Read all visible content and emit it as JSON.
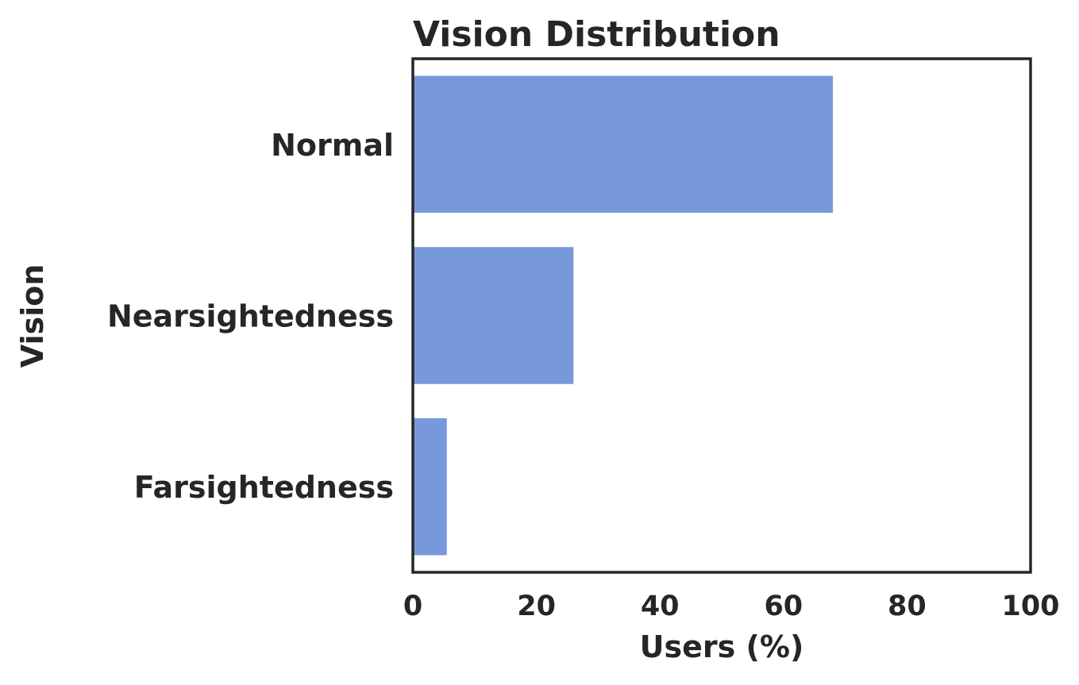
{
  "chart_data": {
    "type": "bar",
    "orientation": "horizontal",
    "title": "Vision Distribution",
    "xlabel": "Users (%)",
    "ylabel": "Vision",
    "categories": [
      "Normal",
      "Nearsightedness",
      "Farsightedness"
    ],
    "values": [
      68,
      26,
      5.5
    ],
    "xlim": [
      0,
      100
    ],
    "xticks": [
      "0",
      "20",
      "40",
      "60",
      "80",
      "100"
    ],
    "grid": false,
    "legend": "none",
    "bar_color": "#7799db",
    "text_color": "#262626",
    "frame_color": "#262626"
  }
}
